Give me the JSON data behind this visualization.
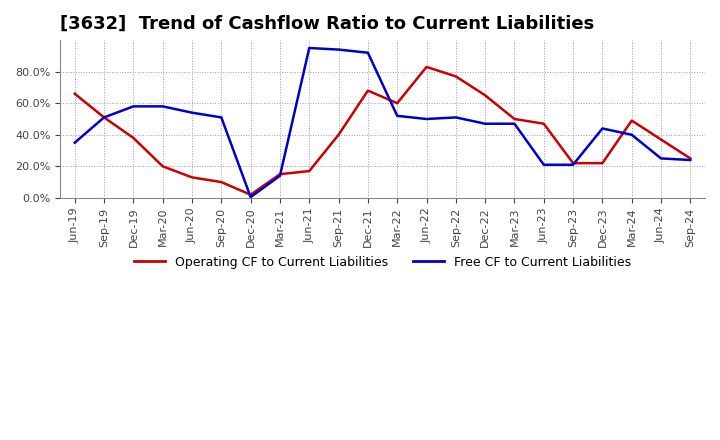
{
  "title": "[3632]  Trend of Cashflow Ratio to Current Liabilities",
  "ylim": [
    0.0,
    1.0
  ],
  "yticks": [
    0.0,
    0.2,
    0.4,
    0.6,
    0.8
  ],
  "ytick_labels": [
    "0.0%",
    "20.0%",
    "40.0%",
    "60.0%",
    "80.0%"
  ],
  "x_labels": [
    "Jun-19",
    "Sep-19",
    "Dec-19",
    "Mar-20",
    "Jun-20",
    "Sep-20",
    "Dec-20",
    "Mar-21",
    "Jun-21",
    "Sep-21",
    "Dec-21",
    "Mar-22",
    "Jun-22",
    "Sep-22",
    "Dec-22",
    "Mar-23",
    "Jun-23",
    "Sep-23",
    "Dec-23",
    "Mar-24",
    "Jun-24",
    "Sep-24"
  ],
  "operating_cf": [
    0.66,
    0.51,
    0.38,
    0.2,
    0.13,
    0.1,
    0.02,
    0.15,
    0.17,
    0.4,
    0.68,
    0.6,
    0.83,
    0.77,
    0.65,
    0.5,
    0.47,
    0.22,
    0.22,
    0.49,
    0.37,
    0.25
  ],
  "free_cf": [
    0.35,
    0.51,
    0.58,
    0.58,
    0.54,
    0.51,
    0.005,
    0.14,
    0.95,
    0.94,
    0.92,
    0.52,
    0.5,
    0.51,
    0.47,
    0.47,
    0.21,
    0.21,
    0.44,
    0.4,
    0.25,
    0.24
  ],
  "operating_color": "#cc0000",
  "free_color": "#0000cc",
  "grid_color": "#9999bb",
  "bg_color": "#ffffff",
  "plot_bg_color": "#ffffff",
  "title_fontsize": 13,
  "legend_fontsize": 9,
  "tick_fontsize": 8
}
